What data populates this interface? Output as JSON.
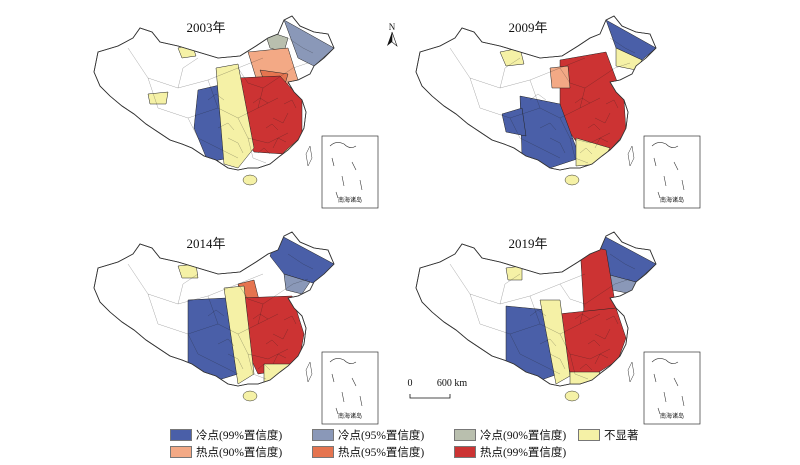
{
  "maps": [
    {
      "title": "2003年",
      "inset_label": "南海诸岛"
    },
    {
      "title": "2009年",
      "inset_label": "南海诸岛"
    },
    {
      "title": "2014年",
      "inset_label": "南海诸岛"
    },
    {
      "title": "2019年",
      "inset_label": "南海诸岛"
    }
  ],
  "north_arrow": {
    "label": "N"
  },
  "scale_bar": {
    "start": "0",
    "end": "600 km"
  },
  "legend": [
    {
      "label": "冷点(99%置信度)",
      "color": "#4a5fa8"
    },
    {
      "label": "冷点(95%置信度)",
      "color": "#8a98b8"
    },
    {
      "label": "冷点(90%置信度)",
      "color": "#b9bfae"
    },
    {
      "label": "不显著",
      "color": "#f5f1a6"
    },
    {
      "label": "热点(90%置信度)",
      "color": "#f3a985"
    },
    {
      "label": "热点(95%置信度)",
      "color": "#e5744f"
    },
    {
      "label": "热点(99%置信度)",
      "color": "#cc3333"
    }
  ]
}
